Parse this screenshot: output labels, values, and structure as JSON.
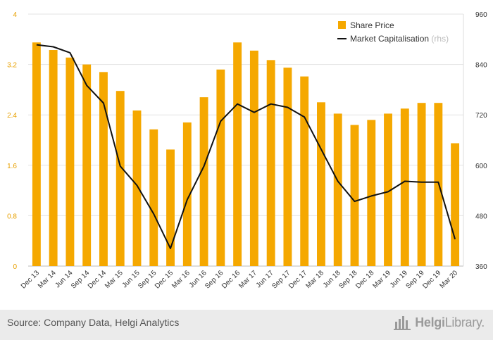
{
  "chart_data": {
    "type": "bar+line",
    "categories": [
      "Dec 13",
      "Mar 14",
      "Jun 14",
      "Sep 14",
      "Dec 14",
      "Mar 15",
      "Jun 15",
      "Sep 15",
      "Dec 15",
      "Mar 16",
      "Jun 16",
      "Sep 16",
      "Dec 16",
      "Mar 17",
      "Jun 17",
      "Sep 17",
      "Dec 17",
      "Mar 18",
      "Jun 18",
      "Sep 18",
      "Dec 18",
      "Mar 19",
      "Jun 19",
      "Sep 19",
      "Dec 19",
      "Mar 20"
    ],
    "series": [
      {
        "name": "Share Price",
        "kind": "bar",
        "axis": "left",
        "color": "#f5a800",
        "values": [
          3.55,
          3.43,
          3.31,
          3.2,
          3.08,
          2.78,
          2.47,
          2.17,
          1.85,
          2.28,
          2.68,
          3.12,
          3.55,
          3.42,
          3.27,
          3.15,
          3.01,
          2.6,
          2.42,
          2.24,
          2.32,
          2.42,
          2.5,
          2.59,
          2.59,
          1.95
        ]
      },
      {
        "name": "Market Capitalisation",
        "name_suffix": "(rhs)",
        "kind": "line",
        "axis": "right",
        "color": "#111111",
        "values": [
          887,
          882,
          868,
          790,
          748,
          598,
          552,
          484,
          402,
          518,
          598,
          705,
          746,
          726,
          746,
          738,
          715,
          638,
          562,
          514,
          527,
          537,
          562,
          560,
          560,
          424
        ]
      }
    ],
    "y_left": {
      "ylim": [
        0,
        4
      ],
      "ticks": [
        "0",
        "0.8",
        "1.6",
        "2.4",
        "3.2",
        "4"
      ],
      "tick_color": "#e8a000"
    },
    "y_right": {
      "ylim": [
        360,
        960
      ],
      "ticks": [
        "360",
        "480",
        "600",
        "720",
        "840",
        "960"
      ]
    },
    "grid": "horizontal",
    "legend": "top-right"
  },
  "footer": {
    "source": "Source: Company Data, Helgi Analytics",
    "brand_bold": "Helgi",
    "brand_light": "Library."
  }
}
